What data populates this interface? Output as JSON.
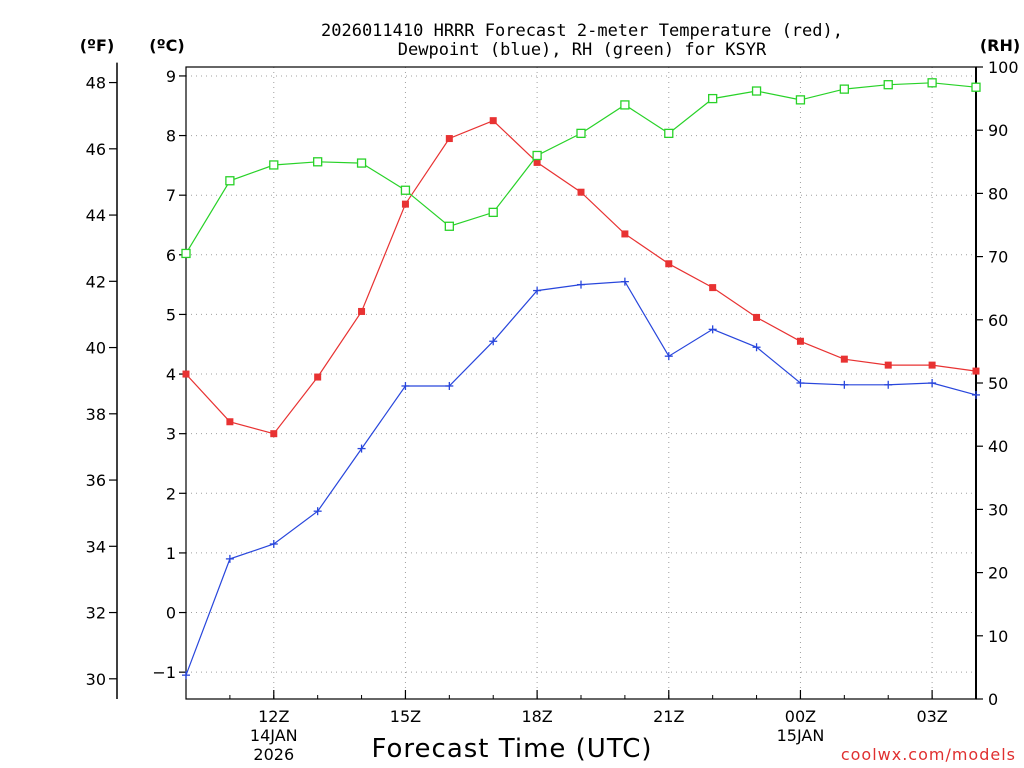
{
  "chart_data": {
    "type": "line",
    "title_line1": "2026011410 HRRR Forecast 2-meter Temperature (red),",
    "title_line2": "Dewpoint (blue), RH (green) for KSYR",
    "xlabel": "Forecast Time (UTC)",
    "left_outer_unit": "(ºF)",
    "left_inner_unit": "(ºC)",
    "right_unit": "(RH)",
    "credit": "coolwx.com/models",
    "credit_color": "#e03030",
    "hours": [
      10,
      11,
      12,
      13,
      14,
      15,
      16,
      17,
      18,
      19,
      20,
      21,
      22,
      23,
      24,
      25,
      26,
      27,
      28
    ],
    "xlim": [
      10,
      28
    ],
    "x_ticks": [
      {
        "hour": 12,
        "label": "12Z",
        "sub1": "14JAN",
        "sub2": "2026"
      },
      {
        "hour": 15,
        "label": "15Z",
        "sub1": "",
        "sub2": ""
      },
      {
        "hour": 18,
        "label": "18Z",
        "sub1": "",
        "sub2": ""
      },
      {
        "hour": 21,
        "label": "21Z",
        "sub1": "",
        "sub2": ""
      },
      {
        "hour": 24,
        "label": "00Z",
        "sub1": "15JAN",
        "sub2": ""
      },
      {
        "hour": 27,
        "label": "03Z",
        "sub1": "",
        "sub2": ""
      }
    ],
    "c_axis": {
      "ylim": [
        -1.45,
        9.15
      ],
      "ticks": [
        -1,
        0,
        1,
        2,
        3,
        4,
        5,
        6,
        7,
        8,
        9
      ]
    },
    "f_axis": {
      "ticks": [
        30,
        32,
        34,
        36,
        38,
        40,
        42,
        44,
        46,
        48
      ]
    },
    "rh_axis": {
      "ylim": [
        0,
        100
      ],
      "ticks": [
        0,
        10,
        20,
        30,
        40,
        50,
        60,
        70,
        80,
        90,
        100
      ]
    },
    "series": [
      {
        "name": "Temperature",
        "unit": "C",
        "color": "#e83232",
        "marker": "square-filled",
        "values": [
          4.0,
          3.2,
          3.0,
          3.95,
          5.05,
          6.85,
          7.95,
          8.25,
          7.55,
          7.05,
          6.35,
          5.85,
          5.45,
          4.95,
          4.55,
          4.25,
          4.15,
          4.15,
          4.05
        ]
      },
      {
        "name": "Dewpoint",
        "unit": "C",
        "color": "#2846dc",
        "marker": "plus",
        "values": [
          -1.05,
          0.9,
          1.15,
          1.7,
          2.75,
          3.8,
          3.8,
          4.55,
          5.4,
          5.5,
          5.55,
          4.3,
          4.75,
          4.45,
          3.85,
          3.82,
          3.82,
          3.85,
          3.65
        ]
      },
      {
        "name": "RH",
        "unit": "%",
        "color": "#28d228",
        "marker": "square-open",
        "values": [
          70.5,
          82,
          84.5,
          85,
          84.8,
          80.5,
          74.8,
          77,
          86,
          89.5,
          94,
          89.5,
          95,
          96.2,
          94.8,
          96.5,
          97.2,
          97.5,
          96.8
        ]
      }
    ]
  }
}
